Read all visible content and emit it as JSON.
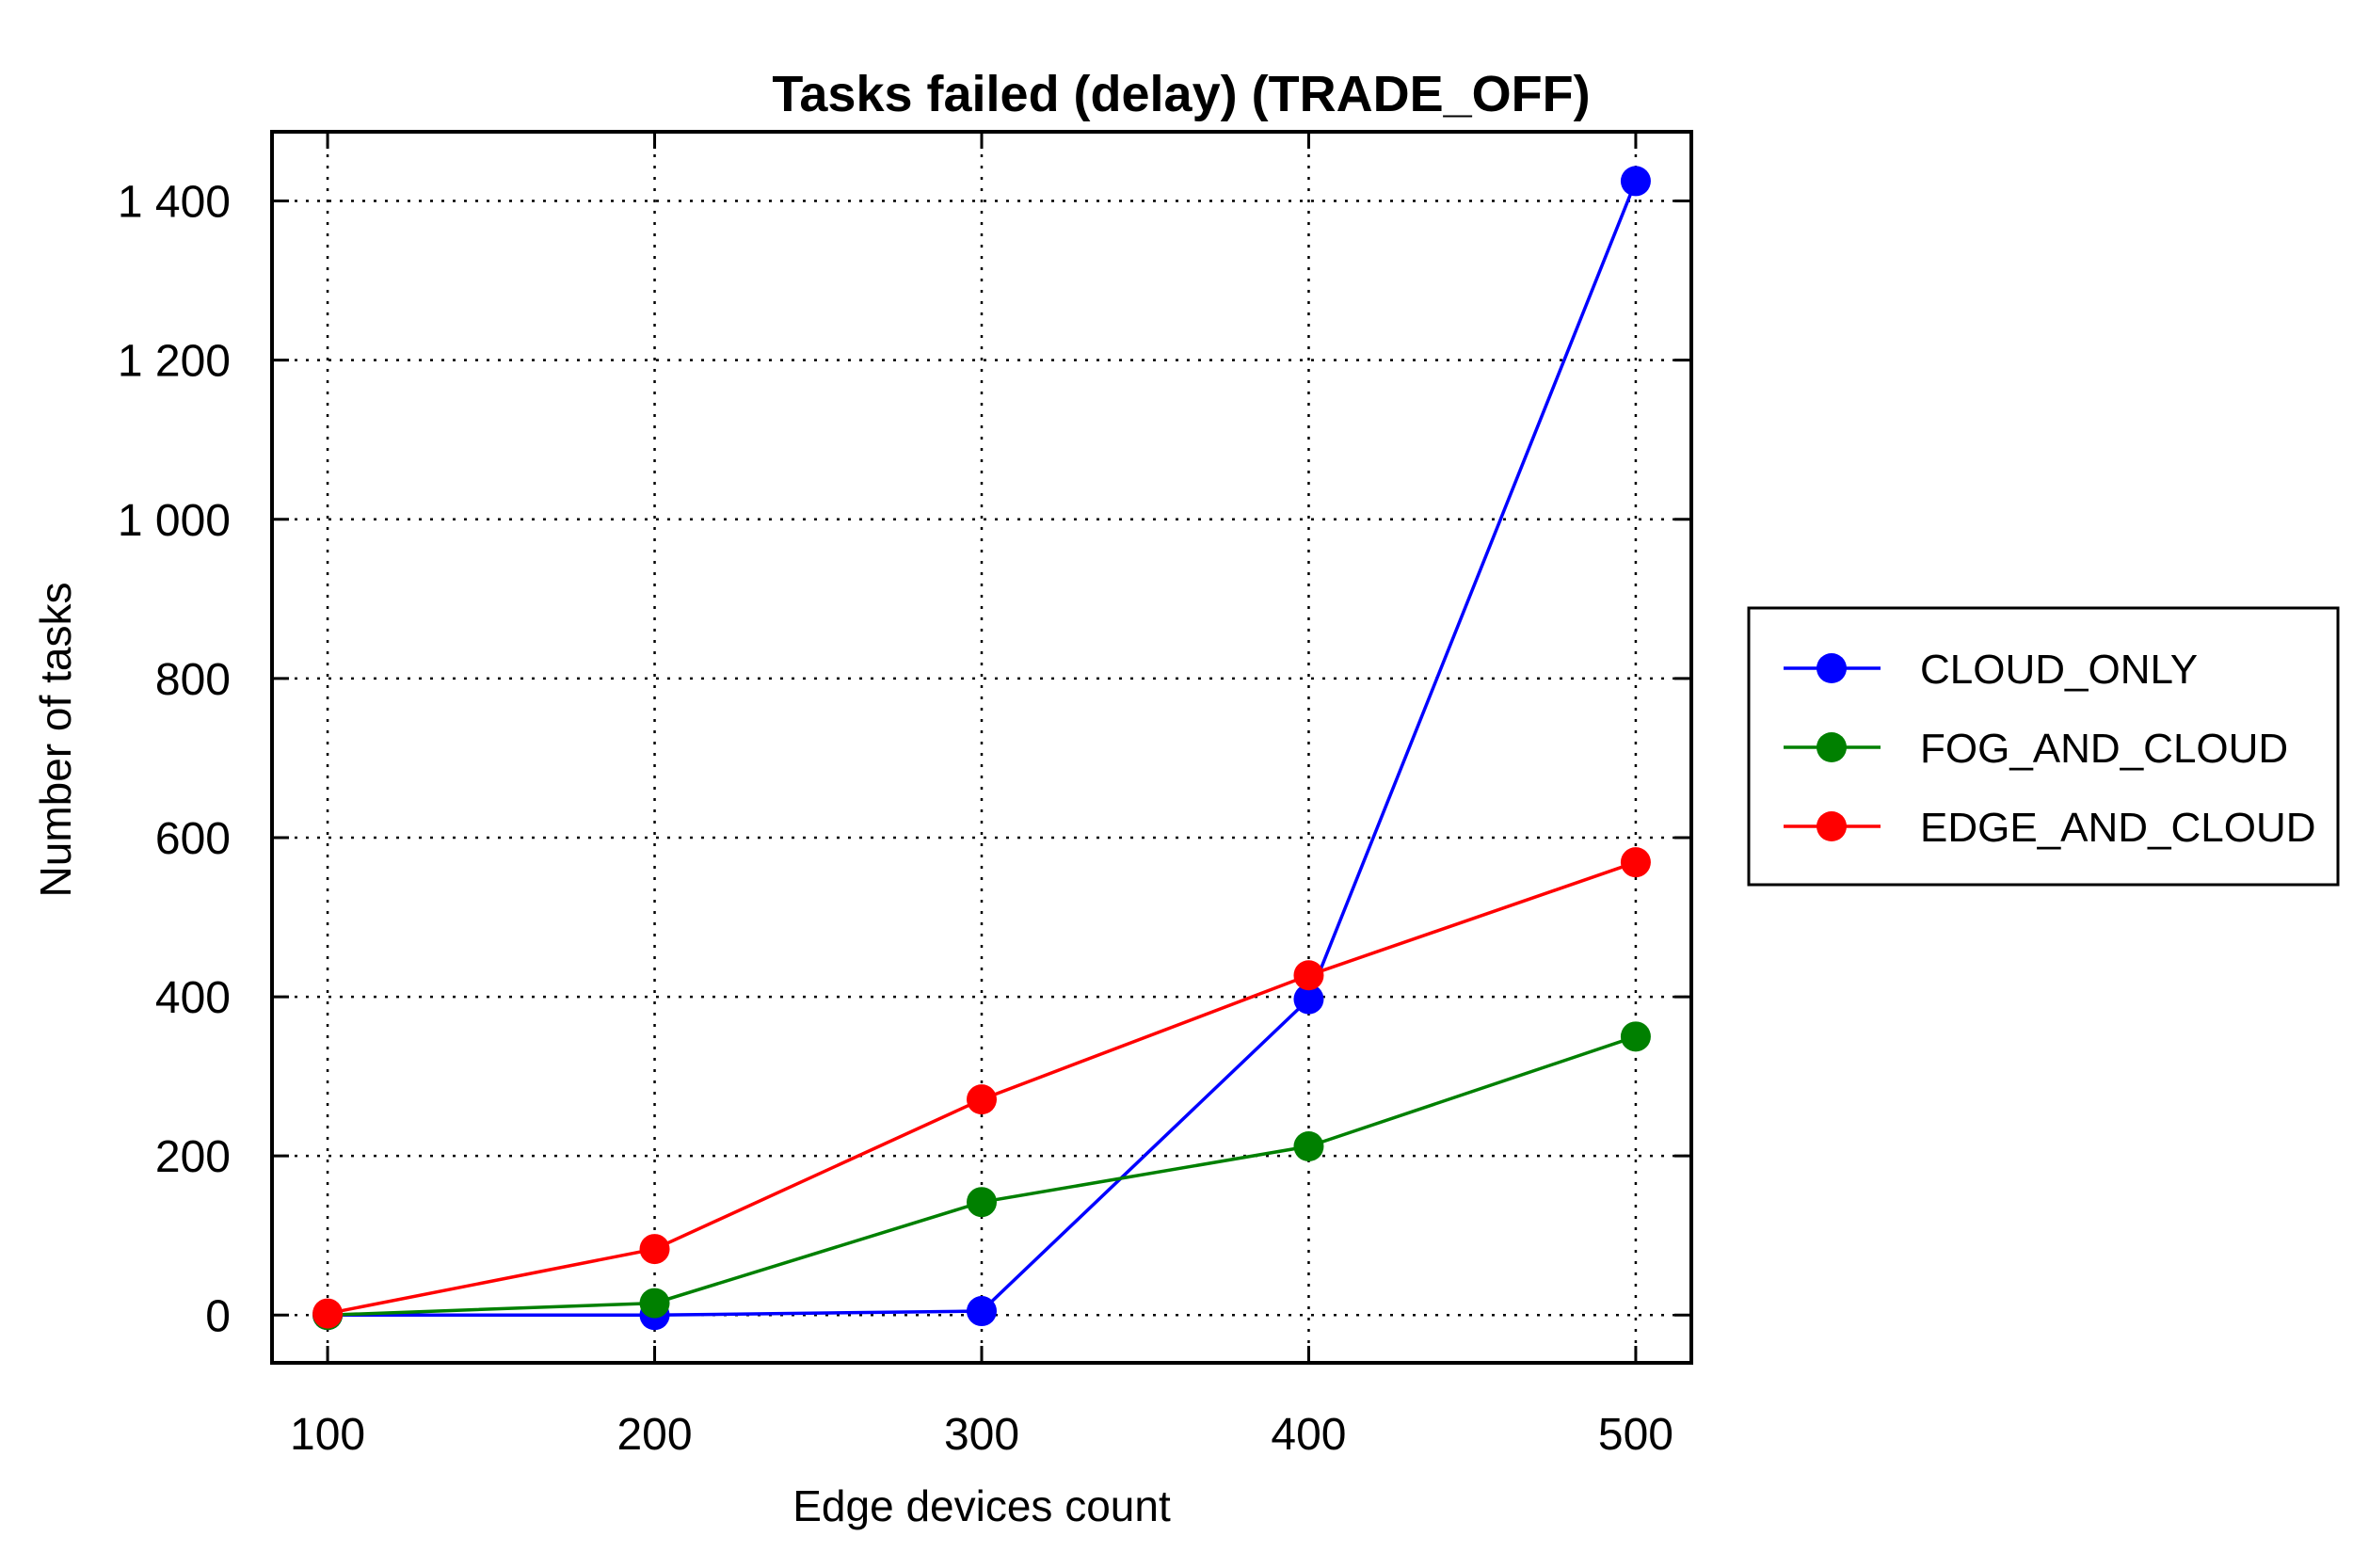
{
  "chart_data": {
    "type": "line",
    "title": "Tasks failed (delay) (TRADE_OFF)",
    "xlabel": "Edge devices count",
    "ylabel": "Number of tasks",
    "x": [
      100,
      200,
      300,
      400,
      500
    ],
    "x_tick_labels": [
      "100",
      "200",
      "300",
      "400",
      "500"
    ],
    "y_ticks": [
      0,
      200,
      400,
      600,
      800,
      1000,
      1200,
      1400
    ],
    "y_tick_labels": [
      "0",
      "200",
      "400",
      "600",
      "800",
      "1 000",
      "1 200",
      "1 400"
    ],
    "xlim": [
      83,
      517
    ],
    "ylim": [
      -60,
      1487
    ],
    "grid": true,
    "legend_position": "right-outside",
    "series": [
      {
        "name": "CLOUD_ONLY",
        "color": "#0000ff",
        "values": [
          0,
          0,
          5,
          397,
          1425
        ]
      },
      {
        "name": "FOG_AND_CLOUD",
        "color": "#008000",
        "values": [
          0,
          15,
          142,
          212,
          350
        ]
      },
      {
        "name": "EDGE_AND_CLOUD",
        "color": "#ff0000",
        "values": [
          2,
          83,
          271,
          427,
          569
        ]
      }
    ]
  }
}
